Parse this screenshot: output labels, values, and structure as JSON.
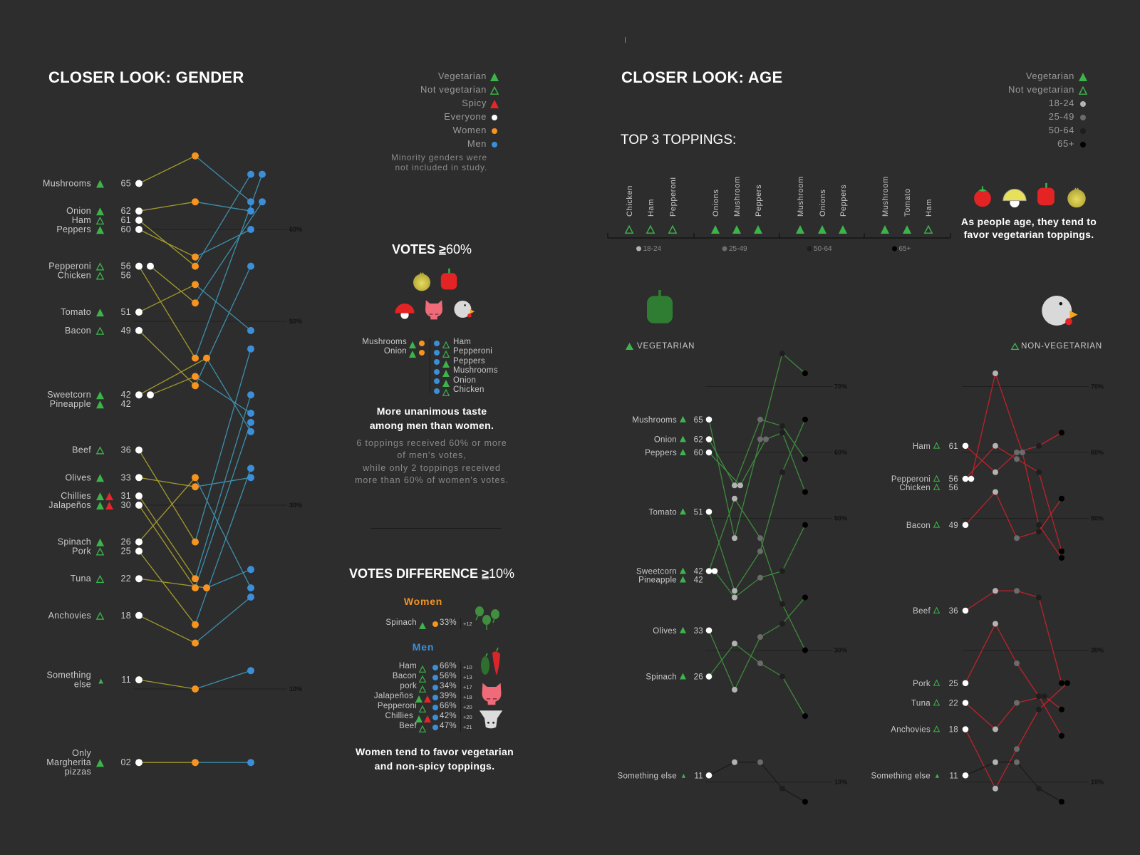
{
  "colors": {
    "background": "#2d2d2d",
    "vegetarian": "#3cb44a",
    "spicy": "#e8262a",
    "everyone": "#ffffff",
    "women": "#f7931e",
    "men": "#3b8fd9",
    "age_18_24": "#b3b3b3",
    "age_25_49": "#6b6b6b",
    "age_50_64": "#1e1e1e",
    "age_65_plus": "#000000",
    "veg_line": "#3d8a3d",
    "nonveg_line": "#c0222a"
  },
  "gender": {
    "title": "CLOSER LOOK: GENDER",
    "legend": [
      {
        "label": "Vegetarian",
        "symbol": "filled-triangle"
      },
      {
        "label": "Not vegetarian",
        "symbol": "outline-triangle"
      },
      {
        "label": "Spicy",
        "symbol": "red-triangle"
      },
      {
        "label": "Everyone",
        "symbol": "white-dot"
      },
      {
        "label": "Women",
        "symbol": "orange-dot"
      },
      {
        "label": "Men",
        "symbol": "blue-dot"
      }
    ],
    "note": "Minority genders were\nnot included in study."
  },
  "votes60": {
    "title_prefix": "VOTES",
    "title_sym": "≥",
    "title_suffix": "60%",
    "women": [
      {
        "name": "Mushrooms",
        "veg": true
      },
      {
        "name": "Onion",
        "veg": true
      }
    ],
    "men": [
      {
        "name": "Ham",
        "veg": false
      },
      {
        "name": "Pepperoni",
        "veg": false
      },
      {
        "name": "Peppers",
        "veg": true
      },
      {
        "name": "Mushrooms",
        "veg": true
      },
      {
        "name": "Onion",
        "veg": true
      },
      {
        "name": "Chicken",
        "veg": false
      }
    ],
    "headline_1": "More unanimous taste",
    "headline_2": "among men than women.",
    "para": [
      "6 toppings received 60% or more",
      "of men's votes,",
      "while only 2 toppings received",
      "more than 60% of women's votes."
    ]
  },
  "votesdiff": {
    "title_prefix": "VOTES DIFFERENCE",
    "title_sym": "≥",
    "title_suffix": "10%",
    "women_label": "Women",
    "men_label": "Men",
    "women": [
      {
        "name": "Spinach",
        "veg": true,
        "spicy": false,
        "pct": "33%",
        "diff": "+12"
      }
    ],
    "men": [
      {
        "name": "Ham",
        "veg": false,
        "spicy": false,
        "pct": "66%",
        "diff": "+10"
      },
      {
        "name": "Bacon",
        "veg": false,
        "spicy": false,
        "pct": "56%",
        "diff": "+13"
      },
      {
        "name": "pork",
        "veg": false,
        "spicy": false,
        "pct": "34%",
        "diff": "+17"
      },
      {
        "name": "Jalapeños",
        "veg": true,
        "spicy": true,
        "pct": "39%",
        "diff": "+18"
      },
      {
        "name": "Pepperoni",
        "veg": false,
        "spicy": false,
        "pct": "66%",
        "diff": "+20"
      },
      {
        "name": "Chillies",
        "veg": true,
        "spicy": true,
        "pct": "42%",
        "diff": "+20"
      },
      {
        "name": "Beef",
        "veg": false,
        "spicy": false,
        "pct": "47%",
        "diff": "+21"
      }
    ],
    "conclusion_1": "Women tend to favor vegetarian",
    "conclusion_2": "and non-spicy toppings."
  },
  "age": {
    "title": "CLOSER LOOK: AGE",
    "legend": [
      {
        "label": "Vegetarian",
        "symbol": "filled-triangle"
      },
      {
        "label": "Not vegetarian",
        "symbol": "outline-triangle"
      },
      {
        "label": "18-24",
        "symbol": "light-gray-dot"
      },
      {
        "label": "25-49",
        "symbol": "gray-dot"
      },
      {
        "label": "50-64",
        "symbol": "dark-gray-dot"
      },
      {
        "label": "65+",
        "symbol": "black-dot"
      }
    ],
    "top3_title": "TOP 3 TOPPINGS:",
    "top3": [
      {
        "age": "18-24",
        "items": [
          {
            "name": "Chicken",
            "veg": false
          },
          {
            "name": "Ham",
            "veg": false
          },
          {
            "name": "Pepperoni",
            "veg": false
          }
        ]
      },
      {
        "age": "25-49",
        "items": [
          {
            "name": "Onions",
            "veg": true
          },
          {
            "name": "Mushroom",
            "veg": true
          },
          {
            "name": "Peppers",
            "veg": true
          }
        ]
      },
      {
        "age": "50-64",
        "items": [
          {
            "name": "Mushroom",
            "veg": true
          },
          {
            "name": "Onions",
            "veg": true
          },
          {
            "name": "Peppers",
            "veg": true
          }
        ]
      },
      {
        "age": "65+",
        "items": [
          {
            "name": "Mushroom",
            "veg": true
          },
          {
            "name": "Tomato",
            "veg": true
          },
          {
            "name": "Ham",
            "veg": false
          }
        ]
      }
    ],
    "conclusion_1": "As people age, they tend to",
    "conclusion_2": "favor vegetarian toppings.",
    "veg_label": "VEGETARIAN",
    "nonveg_label": "NON-VEGETARIAN",
    "icons": [
      "tomato-icon",
      "mushroom-icon",
      "pepper-icon",
      "onion-icon"
    ]
  },
  "chart_data": [
    {
      "type": "line",
      "chart": "gender",
      "categories": [
        "Everyone",
        "Women",
        "Men"
      ],
      "unit": "% of votes",
      "gridlines": [
        60,
        50,
        30,
        10
      ],
      "gridline_labels": [
        "60%",
        "50%",
        "30%",
        "10%"
      ],
      "toppings": [
        {
          "name": "Mushrooms",
          "veg": true,
          "spicy": false,
          "values": [
            65,
            68,
            63
          ]
        },
        {
          "name": "Onion",
          "veg": true,
          "spicy": false,
          "values": [
            62,
            63,
            62
          ]
        },
        {
          "name": "Ham",
          "veg": false,
          "spicy": false,
          "values": [
            61,
            56,
            66
          ]
        },
        {
          "name": "Peppers",
          "veg": true,
          "spicy": false,
          "values": [
            60,
            57,
            60
          ]
        },
        {
          "name": "Pepperoni",
          "veg": false,
          "spicy": false,
          "values": [
            56,
            46,
            66
          ]
        },
        {
          "name": "Chicken",
          "veg": false,
          "spicy": false,
          "values": [
            56,
            52,
            63
          ]
        },
        {
          "name": "Tomato",
          "veg": true,
          "spicy": false,
          "values": [
            51,
            54,
            49
          ]
        },
        {
          "name": "Bacon",
          "veg": false,
          "spicy": false,
          "values": [
            49,
            43,
            56
          ]
        },
        {
          "name": "Sweetcorn",
          "veg": true,
          "spicy": false,
          "values": [
            42,
            46,
            38
          ]
        },
        {
          "name": "Pineapple",
          "veg": true,
          "spicy": false,
          "values": [
            42,
            44,
            40
          ]
        },
        {
          "name": "Beef",
          "veg": false,
          "spicy": false,
          "values": [
            36,
            26,
            47
          ]
        },
        {
          "name": "Olives",
          "veg": true,
          "spicy": false,
          "values": [
            33,
            32,
            33
          ]
        },
        {
          "name": "Chillies",
          "veg": true,
          "spicy": true,
          "values": [
            31,
            22,
            42
          ]
        },
        {
          "name": "Jalapeños",
          "veg": true,
          "spicy": true,
          "values": [
            30,
            21,
            39
          ]
        },
        {
          "name": "Spinach",
          "veg": true,
          "spicy": false,
          "values": [
            26,
            33,
            21
          ]
        },
        {
          "name": "Pork",
          "veg": false,
          "spicy": false,
          "values": [
            25,
            17,
            34
          ]
        },
        {
          "name": "Tuna",
          "veg": false,
          "spicy": false,
          "values": [
            22,
            21,
            23
          ]
        },
        {
          "name": "Anchovies",
          "veg": false,
          "spicy": false,
          "values": [
            18,
            15,
            20
          ]
        },
        {
          "name": "Something\nelse",
          "veg": "partial",
          "spicy": false,
          "values": [
            11,
            10,
            12
          ]
        },
        {
          "name": "Only\nMargherita\npizzas",
          "veg": true,
          "spicy": false,
          "values": [
            2,
            2,
            2
          ]
        }
      ]
    },
    {
      "type": "line",
      "chart": "age-vegetarian",
      "categories": [
        "Everyone",
        "18-24",
        "25-49",
        "50-64",
        "65+"
      ],
      "unit": "% of votes",
      "gridlines": [
        70,
        60,
        50,
        30,
        10
      ],
      "gridline_labels": [
        "70%",
        "60%",
        "50%",
        "30%",
        "10%"
      ],
      "toppings": [
        {
          "name": "Mushrooms",
          "veg": true,
          "values": [
            65,
            47,
            62,
            75,
            72
          ]
        },
        {
          "name": "Onion",
          "veg": true,
          "values": [
            62,
            55,
            65,
            64,
            59
          ]
        },
        {
          "name": "Peppers",
          "veg": true,
          "values": [
            60,
            55,
            62,
            63,
            54
          ]
        },
        {
          "name": "Tomato",
          "veg": true,
          "values": [
            51,
            39,
            45,
            57,
            65
          ]
        },
        {
          "name": "Sweetcorn",
          "veg": true,
          "values": [
            42,
            53,
            47,
            37,
            30
          ]
        },
        {
          "name": "Pineapple",
          "veg": true,
          "values": [
            42,
            38,
            41,
            42,
            49
          ]
        },
        {
          "name": "Olives",
          "veg": true,
          "values": [
            33,
            24,
            32,
            34,
            38
          ]
        },
        {
          "name": "Spinach",
          "veg": true,
          "values": [
            26,
            31,
            28,
            26,
            20
          ]
        },
        {
          "name": "Something else",
          "veg": "partial",
          "values": [
            11,
            13,
            13,
            9,
            7
          ]
        }
      ]
    },
    {
      "type": "line",
      "chart": "age-non-vegetarian",
      "categories": [
        "Everyone",
        "18-24",
        "25-49",
        "50-64",
        "65+"
      ],
      "unit": "% of votes",
      "gridlines": [
        70,
        60,
        50,
        30,
        10
      ],
      "gridline_labels": [
        "70%",
        "60%",
        "50%",
        "30%",
        "10%"
      ],
      "toppings": [
        {
          "name": "Ham",
          "veg": false,
          "values": [
            61,
            57,
            60,
            61,
            63
          ]
        },
        {
          "name": "Pepperoni",
          "veg": false,
          "values": [
            56,
            61,
            59,
            57,
            45
          ]
        },
        {
          "name": "Chicken",
          "veg": false,
          "values": [
            56,
            72,
            60,
            49,
            44
          ]
        },
        {
          "name": "Bacon",
          "veg": false,
          "values": [
            49,
            54,
            47,
            48,
            53
          ]
        },
        {
          "name": "Beef",
          "veg": false,
          "values": [
            36,
            39,
            39,
            38,
            25
          ]
        },
        {
          "name": "Pork",
          "veg": false,
          "values": [
            25,
            34,
            28,
            23,
            17
          ]
        },
        {
          "name": "Tuna",
          "veg": false,
          "values": [
            22,
            18,
            22,
            23,
            21
          ]
        },
        {
          "name": "Anchovies",
          "veg": false,
          "values": [
            18,
            9,
            15,
            21,
            25
          ]
        },
        {
          "name": "Something else",
          "veg": "partial",
          "values": [
            11,
            13,
            13,
            9,
            7
          ]
        }
      ]
    }
  ]
}
